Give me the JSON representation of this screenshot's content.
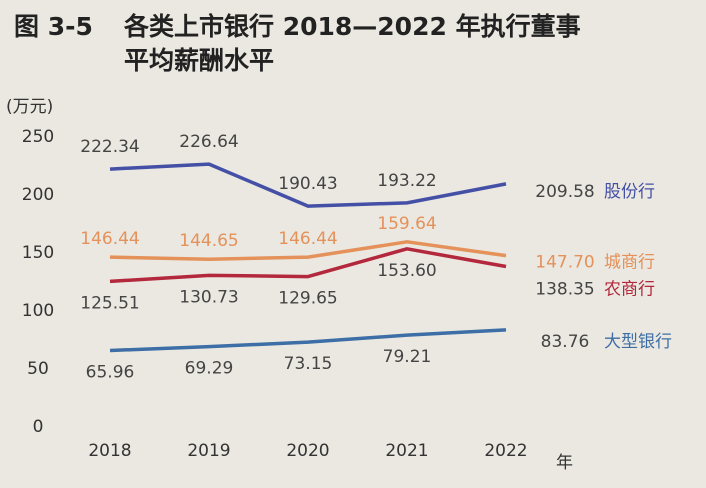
{
  "chart_data": {
    "type": "line",
    "figure_label": "图 3-5",
    "title": [
      "各类上市银行 2018—2022 年执行董事",
      "平均薪酬水平"
    ],
    "y_unit": "(万元)",
    "x_unit": "年",
    "categories": [
      "2018",
      "2019",
      "2020",
      "2021",
      "2022"
    ],
    "ylim": [
      0,
      250
    ],
    "yticks": [
      0,
      50,
      100,
      150,
      200,
      250
    ],
    "grid": false,
    "series": [
      {
        "name": "股份行",
        "color": "#4450a6",
        "values": [
          222.34,
          226.64,
          190.43,
          193.22,
          209.58
        ],
        "value_labels": [
          "222.34",
          "226.64",
          "190.43",
          "193.22",
          "209.58"
        ]
      },
      {
        "name": "城商行",
        "color": "#e4915a",
        "values": [
          146.44,
          144.65,
          146.44,
          159.64,
          147.7
        ],
        "value_labels": [
          "146.44",
          "144.65",
          "146.44",
          "159.64",
          "147.70"
        ]
      },
      {
        "name": "农商行",
        "color": "#b3283c",
        "values": [
          125.51,
          130.73,
          129.65,
          153.6,
          138.35
        ],
        "value_labels": [
          "125.51",
          "130.73",
          "129.65",
          "153.60",
          "138.35"
        ]
      },
      {
        "name": "大型银行",
        "color": "#3d6fa6",
        "values": [
          65.96,
          69.29,
          73.15,
          79.21,
          83.76
        ],
        "value_labels": [
          "65.96",
          "69.29",
          "73.15",
          "79.21",
          "83.76"
        ]
      }
    ]
  }
}
